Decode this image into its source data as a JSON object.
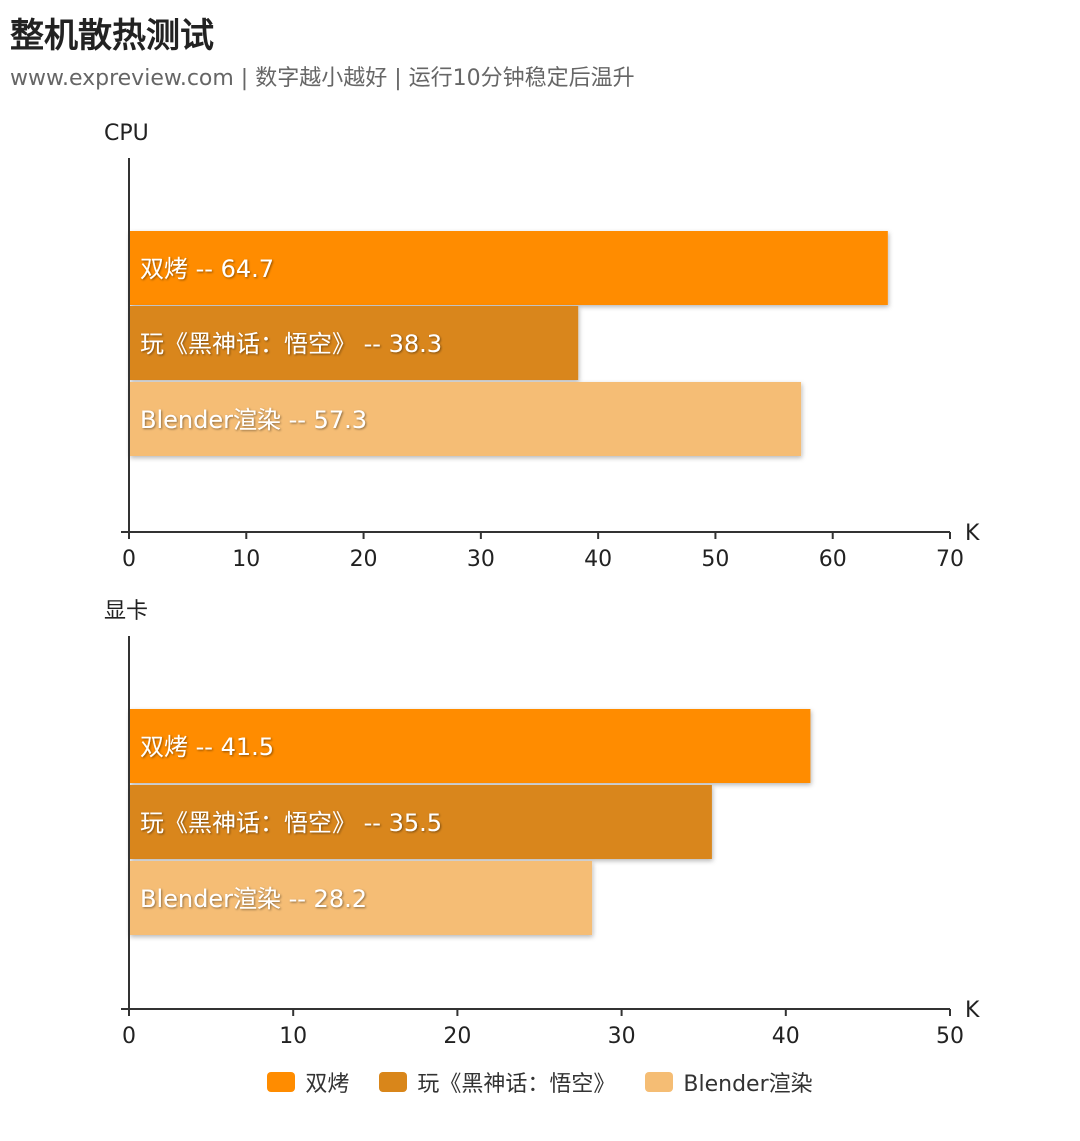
{
  "title": "整机散热测试",
  "subtitle": "www.expreview.com | 数字越小越好 | 运行10分钟稳定后温升",
  "chart_data": [
    {
      "type": "bar",
      "orientation": "horizontal",
      "title": "CPU",
      "xlabel": "K",
      "xlim": [
        0,
        70
      ],
      "xticks": [
        0,
        10,
        20,
        30,
        40,
        50,
        60,
        70
      ],
      "categories": [
        "双烤",
        "玩《黑神话：悟空》",
        "Blender渲染"
      ],
      "values": [
        64.7,
        38.3,
        57.3
      ],
      "data_labels": [
        "双烤  --  64.7",
        "玩《黑神话：悟空》  --  38.3",
        "Blender渲染  --  57.3"
      ],
      "colors": [
        "#FF8C00",
        "#D9861A",
        "#F5BD74"
      ]
    },
    {
      "type": "bar",
      "orientation": "horizontal",
      "title": "显卡",
      "xlabel": "K",
      "xlim": [
        0,
        50
      ],
      "xticks": [
        0,
        10,
        20,
        30,
        40,
        50
      ],
      "categories": [
        "双烤",
        "玩《黑神话：悟空》",
        "Blender渲染"
      ],
      "values": [
        41.5,
        35.5,
        28.2
      ],
      "data_labels": [
        "双烤  --  41.5",
        "玩《黑神话：悟空》  --  35.5",
        "Blender渲染  --  28.2"
      ],
      "colors": [
        "#FF8C00",
        "#D9861A",
        "#F5BD74"
      ]
    }
  ],
  "legend": {
    "placement": "bottom",
    "items": [
      {
        "label": "双烤",
        "color": "#FF8C00"
      },
      {
        "label": "玩《黑神话：悟空》",
        "color": "#D9861A"
      },
      {
        "label": "Blender渲染",
        "color": "#F5BD74"
      }
    ]
  }
}
